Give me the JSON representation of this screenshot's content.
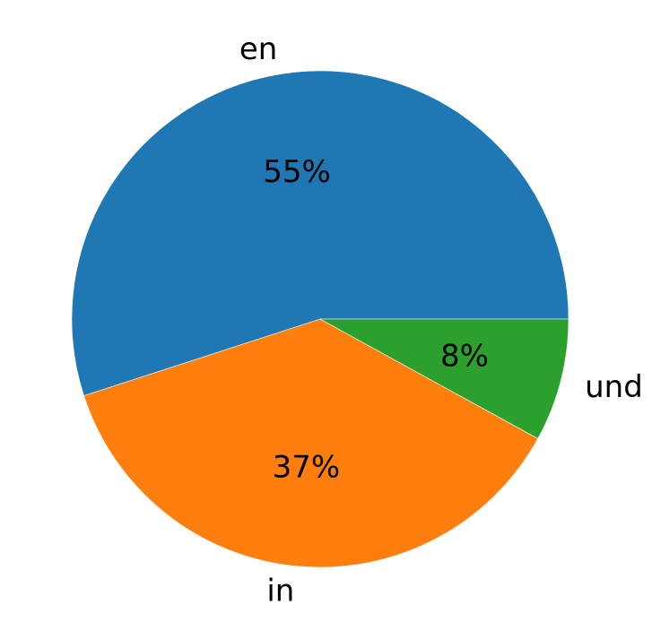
{
  "chart_data": {
    "type": "pie",
    "categories": [
      "en",
      "in",
      "und"
    ],
    "values": [
      55,
      37,
      8
    ],
    "value_labels": [
      "55%",
      "37%",
      "8%"
    ],
    "colors": [
      "#1f77b4",
      "#ff7f0e",
      "#2ca02c"
    ],
    "start_angle_deg": 0,
    "direction": "counterclockwise",
    "legend": "none"
  }
}
